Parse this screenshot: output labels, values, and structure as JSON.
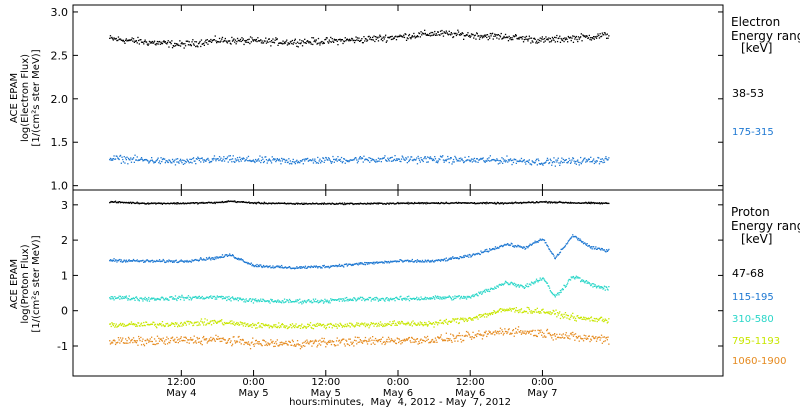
{
  "chart_data": [
    {
      "type": "scatter",
      "panel": "electron",
      "ylabel": [
        "ACE EPAM",
        "log(Electron Flux)",
        "[1/(cm²s ster MeV)]"
      ],
      "ylim": [
        0.95,
        3.08
      ],
      "yticks": [
        {
          "value": 1.0,
          "label": "1.0"
        },
        {
          "value": 1.5,
          "label": "1.5"
        },
        {
          "value": 2.0,
          "label": "2.0"
        },
        {
          "value": 2.5,
          "label": "2.5"
        },
        {
          "value": 3.0,
          "label": "3.0"
        }
      ],
      "legend_title": [
        "Electron",
        "Energy ranges",
        "[keV]"
      ],
      "series": [
        {
          "name": "38-53",
          "color": "#000000",
          "x_hours": [
            0,
            6,
            12,
            18,
            24,
            30,
            36,
            42,
            48,
            54,
            60,
            66,
            72,
            78,
            83
          ],
          "values": [
            2.7,
            2.66,
            2.63,
            2.68,
            2.67,
            2.66,
            2.67,
            2.69,
            2.72,
            2.76,
            2.74,
            2.72,
            2.68,
            2.71,
            2.74
          ],
          "scatter": 0.06
        },
        {
          "name": "175-315",
          "color": "#1e78d2",
          "x_hours": [
            0,
            6,
            12,
            18,
            24,
            30,
            36,
            42,
            48,
            54,
            60,
            66,
            72,
            78,
            83
          ],
          "values": [
            1.32,
            1.3,
            1.28,
            1.31,
            1.3,
            1.29,
            1.3,
            1.31,
            1.31,
            1.31,
            1.3,
            1.3,
            1.28,
            1.29,
            1.31
          ],
          "scatter": 0.06
        }
      ]
    },
    {
      "type": "scatter",
      "panel": "proton",
      "ylabel": [
        "ACE EPAM",
        "log(Proton Flux)",
        "[1/(cm²s ster MeV)]"
      ],
      "ylim": [
        -1.85,
        3.42
      ],
      "yticks": [
        {
          "value": -1,
          "label": "-1"
        },
        {
          "value": 0,
          "label": "0"
        },
        {
          "value": 1,
          "label": "1"
        },
        {
          "value": 2,
          "label": "2"
        },
        {
          "value": 3,
          "label": "3"
        }
      ],
      "legend_title": [
        "Proton",
        "Energy ranges",
        "[keV]"
      ],
      "series": [
        {
          "name": "47-68",
          "color": "#000000",
          "x_hours": [
            0,
            6,
            12,
            18,
            20,
            24,
            30,
            36,
            42,
            48,
            54,
            60,
            66,
            72,
            78,
            83
          ],
          "values": [
            3.1,
            3.06,
            3.06,
            3.08,
            3.12,
            3.07,
            3.05,
            3.05,
            3.05,
            3.06,
            3.07,
            3.07,
            3.06,
            3.1,
            3.07,
            3.06
          ],
          "scatter": 0.03
        },
        {
          "name": "115-195",
          "color": "#1e78d2",
          "x_hours": [
            0,
            6,
            12,
            18,
            20,
            24,
            30,
            36,
            42,
            48,
            54,
            60,
            66,
            69,
            72,
            74,
            77,
            80,
            83
          ],
          "values": [
            1.45,
            1.42,
            1.42,
            1.52,
            1.6,
            1.3,
            1.23,
            1.27,
            1.35,
            1.42,
            1.42,
            1.57,
            1.9,
            1.8,
            2.05,
            1.5,
            2.15,
            1.8,
            1.72
          ],
          "scatter": 0.06
        },
        {
          "name": "310-580",
          "color": "#29d6c8",
          "x_hours": [
            0,
            6,
            12,
            18,
            24,
            30,
            36,
            42,
            48,
            54,
            60,
            66,
            69,
            72,
            74,
            77,
            80,
            83
          ],
          "values": [
            0.4,
            0.35,
            0.38,
            0.4,
            0.3,
            0.28,
            0.3,
            0.35,
            0.35,
            0.38,
            0.4,
            0.82,
            0.7,
            0.95,
            0.4,
            1.0,
            0.75,
            0.62
          ],
          "scatter": 0.09
        },
        {
          "name": "795-1193",
          "color": "#c8e600",
          "x_hours": [
            0,
            6,
            12,
            18,
            24,
            30,
            36,
            42,
            48,
            54,
            60,
            66,
            72,
            78,
            83
          ],
          "values": [
            -0.38,
            -0.38,
            -0.35,
            -0.3,
            -0.4,
            -0.42,
            -0.4,
            -0.38,
            -0.35,
            -0.35,
            -0.2,
            0.05,
            0.0,
            -0.2,
            -0.25
          ],
          "scatter": 0.12
        },
        {
          "name": "1060-1900",
          "color": "#e58a1f",
          "x_hours": [
            0,
            6,
            12,
            18,
            24,
            30,
            36,
            42,
            48,
            54,
            60,
            66,
            72,
            78,
            83
          ],
          "values": [
            -0.85,
            -0.85,
            -0.82,
            -0.8,
            -0.9,
            -0.92,
            -0.88,
            -0.85,
            -0.82,
            -0.8,
            -0.72,
            -0.55,
            -0.62,
            -0.75,
            -0.78
          ],
          "scatter": 0.18
        }
      ]
    }
  ],
  "x_axis": {
    "range_hours": [
      -6,
      102
    ],
    "ticks": [
      {
        "hour": 12,
        "label": "12:00",
        "sublabel": "May 4"
      },
      {
        "hour": 24,
        "label": "0:00",
        "sublabel": "May 5"
      },
      {
        "hour": 36,
        "label": "12:00",
        "sublabel": "May 5"
      },
      {
        "hour": 48,
        "label": "0:00",
        "sublabel": "May 6"
      },
      {
        "hour": 60,
        "label": "12:00",
        "sublabel": "May 6"
      },
      {
        "hour": 72,
        "label": "0:00",
        "sublabel": "May 7"
      }
    ],
    "label": "hours:minutes,  May  4, 2012 - May  7, 2012"
  }
}
